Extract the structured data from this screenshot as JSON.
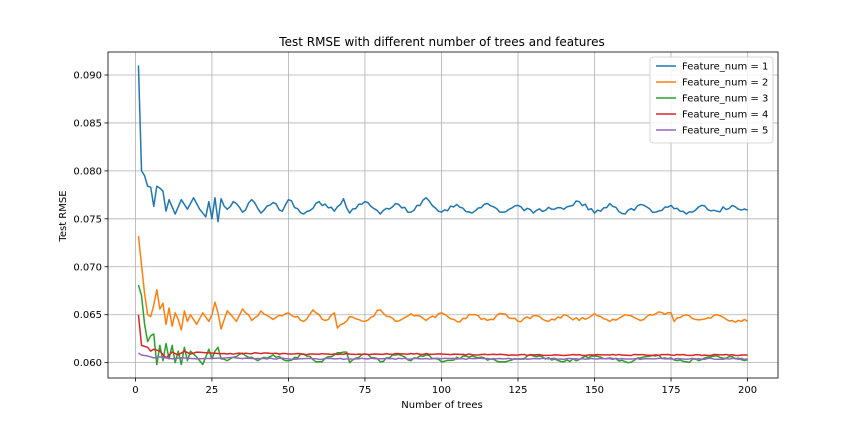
{
  "chart_data": {
    "type": "line",
    "title": "Test RMSE with different number of trees and features",
    "xlabel": "Number of trees",
    "ylabel": "Test RMSE",
    "xlim": [
      -8.95,
      209.95
    ],
    "ylim": [
      0.0584,
      0.0924
    ],
    "xticks": [
      0,
      25,
      50,
      75,
      100,
      125,
      150,
      175,
      200
    ],
    "yticks": [
      0.06,
      0.065,
      0.07,
      0.075,
      0.08,
      0.085,
      0.09
    ],
    "grid": true,
    "legend_position": "top-right",
    "x_start": 1,
    "series": [
      {
        "name": "Feature_num = 1",
        "color": "#1f77b4",
        "key_points": [
          [
            1,
            0.091
          ],
          [
            2,
            0.08
          ],
          [
            3,
            0.0795
          ],
          [
            4,
            0.0784
          ],
          [
            5,
            0.0783
          ],
          [
            6,
            0.0763
          ],
          [
            7,
            0.0784
          ],
          [
            8,
            0.0782
          ],
          [
            9,
            0.0779
          ],
          [
            10,
            0.0758
          ],
          [
            11,
            0.077
          ],
          [
            13,
            0.0755
          ],
          [
            15,
            0.077
          ],
          [
            17,
            0.076
          ],
          [
            19,
            0.0772
          ],
          [
            21,
            0.076
          ],
          [
            23,
            0.0752
          ],
          [
            24,
            0.0768
          ],
          [
            25,
            0.075
          ],
          [
            26,
            0.0772
          ],
          [
            27,
            0.0747
          ],
          [
            28,
            0.0771
          ],
          [
            30,
            0.076
          ],
          [
            32,
            0.0768
          ],
          [
            35,
            0.0757
          ],
          [
            38,
            0.077
          ],
          [
            41,
            0.0756
          ],
          [
            45,
            0.0767
          ],
          [
            48,
            0.0758
          ],
          [
            50,
            0.077
          ],
          [
            55,
            0.0755
          ],
          [
            60,
            0.0768
          ],
          [
            65,
            0.0758
          ],
          [
            68,
            0.0771
          ],
          [
            70,
            0.0756
          ],
          [
            75,
            0.0768
          ],
          [
            80,
            0.0755
          ],
          [
            85,
            0.0766
          ],
          [
            90,
            0.0757
          ],
          [
            95,
            0.0772
          ],
          [
            100,
            0.0757
          ],
          [
            105,
            0.0765
          ],
          [
            110,
            0.0756
          ],
          [
            115,
            0.0766
          ],
          [
            120,
            0.0757
          ],
          [
            125,
            0.0764
          ],
          [
            130,
            0.0756
          ],
          [
            135,
            0.0762
          ],
          [
            140,
            0.076
          ],
          [
            145,
            0.0768
          ],
          [
            150,
            0.0756
          ],
          [
            155,
            0.0766
          ],
          [
            160,
            0.0755
          ],
          [
            165,
            0.0765
          ],
          [
            170,
            0.0757
          ],
          [
            175,
            0.0764
          ],
          [
            180,
            0.0755
          ],
          [
            185,
            0.0764
          ],
          [
            190,
            0.0758
          ],
          [
            195,
            0.0764
          ],
          [
            200,
            0.0759
          ]
        ]
      },
      {
        "name": "Feature_num = 2",
        "color": "#ff7f0e",
        "key_points": [
          [
            1,
            0.0732
          ],
          [
            2,
            0.0702
          ],
          [
            3,
            0.0672
          ],
          [
            4,
            0.065
          ],
          [
            5,
            0.0648
          ],
          [
            6,
            0.066
          ],
          [
            7,
            0.0676
          ],
          [
            8,
            0.0656
          ],
          [
            9,
            0.0662
          ],
          [
            10,
            0.064
          ],
          [
            11,
            0.0657
          ],
          [
            12,
            0.0638
          ],
          [
            13,
            0.0652
          ],
          [
            14,
            0.0645
          ],
          [
            15,
            0.0634
          ],
          [
            16,
            0.0654
          ],
          [
            17,
            0.0643
          ],
          [
            18,
            0.065
          ],
          [
            20,
            0.064
          ],
          [
            22,
            0.0652
          ],
          [
            24,
            0.0643
          ],
          [
            25,
            0.065
          ],
          [
            26,
            0.0663
          ],
          [
            27,
            0.0652
          ],
          [
            28,
            0.0635
          ],
          [
            30,
            0.0654
          ],
          [
            33,
            0.0643
          ],
          [
            35,
            0.0656
          ],
          [
            38,
            0.0644
          ],
          [
            41,
            0.0654
          ],
          [
            45,
            0.0645
          ],
          [
            50,
            0.0652
          ],
          [
            55,
            0.0643
          ],
          [
            58,
            0.0655
          ],
          [
            62,
            0.0644
          ],
          [
            65,
            0.0652
          ],
          [
            66,
            0.0636
          ],
          [
            70,
            0.0648
          ],
          [
            75,
            0.0643
          ],
          [
            80,
            0.0655
          ],
          [
            85,
            0.0643
          ],
          [
            90,
            0.0651
          ],
          [
            95,
            0.0644
          ],
          [
            100,
            0.0652
          ],
          [
            105,
            0.0643
          ],
          [
            110,
            0.065
          ],
          [
            115,
            0.0644
          ],
          [
            120,
            0.0651
          ],
          [
            125,
            0.0643
          ],
          [
            130,
            0.0649
          ],
          [
            135,
            0.0643
          ],
          [
            140,
            0.065
          ],
          [
            145,
            0.0644
          ],
          [
            150,
            0.0651
          ],
          [
            155,
            0.0643
          ],
          [
            160,
            0.065
          ],
          [
            165,
            0.0644
          ],
          [
            170,
            0.0651
          ],
          [
            175,
            0.0652
          ],
          [
            176,
            0.0643
          ],
          [
            180,
            0.065
          ],
          [
            185,
            0.0645
          ],
          [
            190,
            0.065
          ],
          [
            195,
            0.0644
          ],
          [
            200,
            0.0643
          ]
        ]
      },
      {
        "name": "Feature_num = 3",
        "color": "#2ca02c",
        "key_points": [
          [
            1,
            0.0681
          ],
          [
            2,
            0.067
          ],
          [
            3,
            0.064
          ],
          [
            4,
            0.0622
          ],
          [
            5,
            0.0628
          ],
          [
            6,
            0.063
          ],
          [
            7,
            0.0598
          ],
          [
            8,
            0.0618
          ],
          [
            9,
            0.0602
          ],
          [
            10,
            0.062
          ],
          [
            11,
            0.0604
          ],
          [
            12,
            0.0618
          ],
          [
            13,
            0.06
          ],
          [
            14,
            0.0612
          ],
          [
            15,
            0.0598
          ],
          [
            16,
            0.0616
          ],
          [
            17,
            0.0602
          ],
          [
            18,
            0.0612
          ],
          [
            20,
            0.0606
          ],
          [
            22,
            0.0598
          ],
          [
            24,
            0.0614
          ],
          [
            25,
            0.0604
          ],
          [
            26,
            0.0612
          ],
          [
            27,
            0.0616
          ],
          [
            28,
            0.0604
          ],
          [
            30,
            0.0602
          ],
          [
            35,
            0.061
          ],
          [
            40,
            0.0602
          ],
          [
            45,
            0.0608
          ],
          [
            50,
            0.0602
          ],
          [
            55,
            0.0609
          ],
          [
            60,
            0.0601
          ],
          [
            65,
            0.0608
          ],
          [
            69,
            0.0611
          ],
          [
            70,
            0.06
          ],
          [
            75,
            0.0609
          ],
          [
            80,
            0.0601
          ],
          [
            85,
            0.0608
          ],
          [
            90,
            0.0602
          ],
          [
            95,
            0.0608
          ],
          [
            100,
            0.0601
          ],
          [
            110,
            0.0607
          ],
          [
            120,
            0.0601
          ],
          [
            130,
            0.0607
          ],
          [
            140,
            0.0601
          ],
          [
            150,
            0.0607
          ],
          [
            160,
            0.0601
          ],
          [
            170,
            0.0607
          ],
          [
            180,
            0.0601
          ],
          [
            190,
            0.0607
          ],
          [
            200,
            0.0603
          ]
        ]
      },
      {
        "name": "Feature_num = 4",
        "color": "#d62728",
        "key_points": [
          [
            1,
            0.065
          ],
          [
            2,
            0.0618
          ],
          [
            3,
            0.0617
          ],
          [
            4,
            0.0616
          ],
          [
            5,
            0.0612
          ],
          [
            6,
            0.0614
          ],
          [
            8,
            0.0612
          ],
          [
            10,
            0.0605
          ],
          [
            12,
            0.0611
          ],
          [
            14,
            0.0608
          ],
          [
            16,
            0.0612
          ],
          [
            18,
            0.0609
          ],
          [
            20,
            0.0611
          ],
          [
            25,
            0.061
          ],
          [
            30,
            0.0609
          ],
          [
            40,
            0.061
          ],
          [
            50,
            0.0609
          ],
          [
            75,
            0.0609
          ],
          [
            100,
            0.0609
          ],
          [
            125,
            0.0608
          ],
          [
            150,
            0.0608
          ],
          [
            175,
            0.0608
          ],
          [
            200,
            0.0608
          ]
        ]
      },
      {
        "name": "Feature_num = 5",
        "color": "#9467bd",
        "key_points": [
          [
            1,
            0.061
          ],
          [
            2,
            0.0608
          ],
          [
            4,
            0.0607
          ],
          [
            6,
            0.0605
          ],
          [
            8,
            0.0606
          ],
          [
            10,
            0.0605
          ],
          [
            12,
            0.0604
          ],
          [
            15,
            0.0605
          ],
          [
            20,
            0.0604
          ],
          [
            30,
            0.0605
          ],
          [
            50,
            0.0604
          ],
          [
            75,
            0.0604
          ],
          [
            100,
            0.0604
          ],
          [
            125,
            0.0604
          ],
          [
            150,
            0.0604
          ],
          [
            175,
            0.0604
          ],
          [
            200,
            0.0604
          ]
        ]
      }
    ]
  }
}
